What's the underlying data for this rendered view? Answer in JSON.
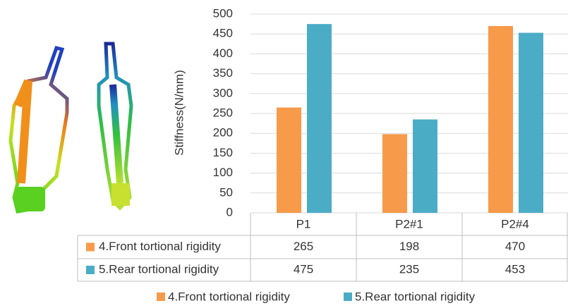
{
  "chart_data": {
    "type": "bar",
    "y_label": "Stiffness(N/mm)",
    "categories": [
      "P1",
      "P2#1",
      "P2#4"
    ],
    "series": [
      {
        "name": "4.Front tortional rigidity",
        "color": "#f79a4a",
        "values": [
          265,
          198,
          470
        ]
      },
      {
        "name": "5.Rear tortional rigidity",
        "color": "#4bacc6",
        "values": [
          475,
          235,
          453
        ]
      }
    ],
    "ylim": [
      0,
      500
    ],
    "yticks": [
      0,
      50,
      100,
      150,
      200,
      250,
      300,
      350,
      400,
      450,
      500
    ],
    "grid": true
  }
}
